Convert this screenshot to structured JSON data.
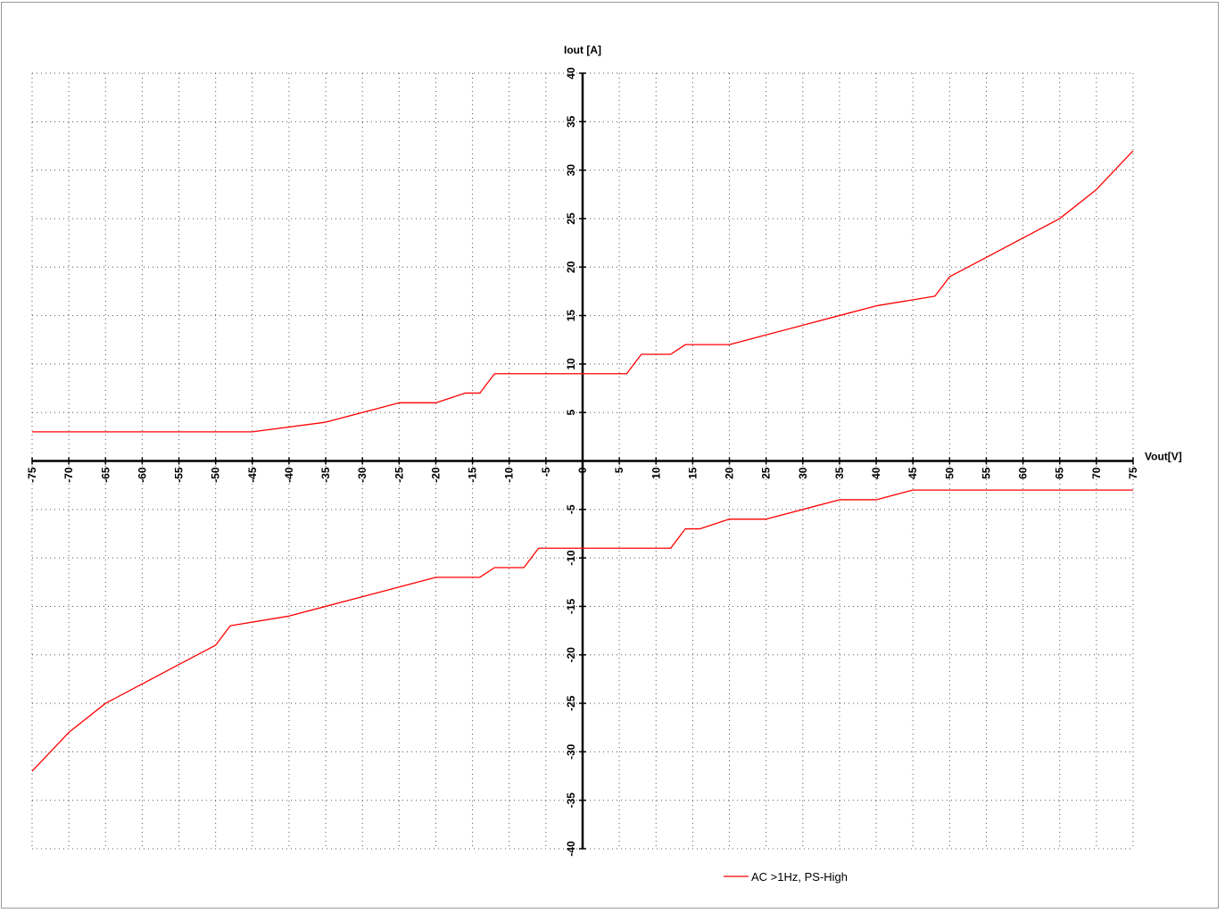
{
  "chart_data": {
    "type": "line",
    "xlabel": "Vout[V]",
    "ylabel": "Iout [A]",
    "xlim": [
      -75,
      75
    ],
    "ylim": [
      -40,
      40
    ],
    "x_ticks": [
      -75,
      -70,
      -65,
      -60,
      -55,
      -50,
      -45,
      -40,
      -35,
      -30,
      -25,
      -20,
      -15,
      -10,
      -5,
      0,
      5,
      10,
      15,
      20,
      25,
      30,
      35,
      40,
      45,
      50,
      55,
      60,
      65,
      70,
      75
    ],
    "y_ticks": [
      -40,
      -35,
      -30,
      -25,
      -20,
      -15,
      -10,
      -5,
      0,
      5,
      10,
      15,
      20,
      25,
      30,
      35,
      40
    ],
    "grid": true,
    "grid_style": "dotted",
    "legend_position": "bottom-center",
    "series": [
      {
        "name": "AC >1Hz, PS-High",
        "color": "#ff0000",
        "segments": [
          {
            "part": "upper",
            "points": [
              [
                -75,
                3
              ],
              [
                -45,
                3
              ],
              [
                -35,
                4
              ],
              [
                -25,
                6
              ],
              [
                -20,
                6
              ],
              [
                -16,
                7
              ],
              [
                -14,
                7
              ],
              [
                -12,
                9
              ],
              [
                6,
                9
              ],
              [
                8,
                11
              ],
              [
                12,
                11
              ],
              [
                14,
                12
              ],
              [
                20,
                12
              ],
              [
                25,
                13
              ],
              [
                30,
                14
              ],
              [
                35,
                15
              ],
              [
                40,
                16
              ],
              [
                48,
                17
              ],
              [
                50,
                19
              ],
              [
                55,
                21
              ],
              [
                60,
                23
              ],
              [
                65,
                25
              ],
              [
                70,
                28
              ],
              [
                75,
                32
              ]
            ]
          },
          {
            "part": "lower",
            "points": [
              [
                -75,
                -32
              ],
              [
                -70,
                -28
              ],
              [
                -65,
                -25
              ],
              [
                -60,
                -23
              ],
              [
                -55,
                -21
              ],
              [
                -50,
                -19
              ],
              [
                -48,
                -17
              ],
              [
                -40,
                -16
              ],
              [
                -35,
                -15
              ],
              [
                -30,
                -14
              ],
              [
                -25,
                -13
              ],
              [
                -20,
                -12
              ],
              [
                -14,
                -12
              ],
              [
                -12,
                -11
              ],
              [
                -8,
                -11
              ],
              [
                -6,
                -9
              ],
              [
                12,
                -9
              ],
              [
                14,
                -7
              ],
              [
                16,
                -7
              ],
              [
                20,
                -6
              ],
              [
                25,
                -6
              ],
              [
                30,
                -5
              ],
              [
                35,
                -4
              ],
              [
                40,
                -4
              ],
              [
                45,
                -3
              ],
              [
                75,
                -3
              ]
            ]
          }
        ]
      }
    ]
  }
}
